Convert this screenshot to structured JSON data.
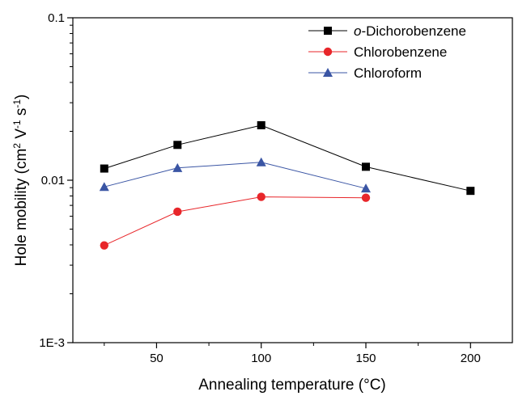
{
  "chart_data": {
    "type": "line",
    "xlabel": "Annealing temperature (°C)",
    "ylabel_parts": [
      "Hole mobility (cm",
      "2",
      " V",
      "-1",
      " s",
      "-1",
      ")"
    ],
    "xlim": [
      10,
      220
    ],
    "ylim": [
      0.001,
      0.1
    ],
    "yscale": "log",
    "x_ticks": [
      50,
      100,
      150,
      200
    ],
    "x_tick_labels": [
      "50",
      "100",
      "150",
      "200"
    ],
    "x_minor_ticks": [
      25,
      75,
      125,
      175
    ],
    "y_ticks": [
      0.001,
      0.01,
      0.1
    ],
    "y_tick_labels": [
      "1E-3",
      "0.01",
      "0.1"
    ],
    "legend_position": "top-right",
    "series": [
      {
        "name_prefix": "o",
        "name_rest": "-Dichorobenzene",
        "color": "#000000",
        "marker": "square",
        "x": [
          25,
          60,
          100,
          150,
          200
        ],
        "y": [
          0.0118,
          0.0165,
          0.0218,
          0.0121,
          0.0086
        ]
      },
      {
        "name": "Chlorobenzene",
        "color": "#e8262a",
        "marker": "circle",
        "x": [
          25,
          60,
          100,
          150
        ],
        "y": [
          0.00397,
          0.0064,
          0.0079,
          0.0078
        ]
      },
      {
        "name": "Chloroform",
        "color": "#3a55a4",
        "marker": "triangle",
        "x": [
          25,
          60,
          100,
          150
        ],
        "y": [
          0.0091,
          0.0119,
          0.0129,
          0.0089
        ]
      }
    ]
  }
}
